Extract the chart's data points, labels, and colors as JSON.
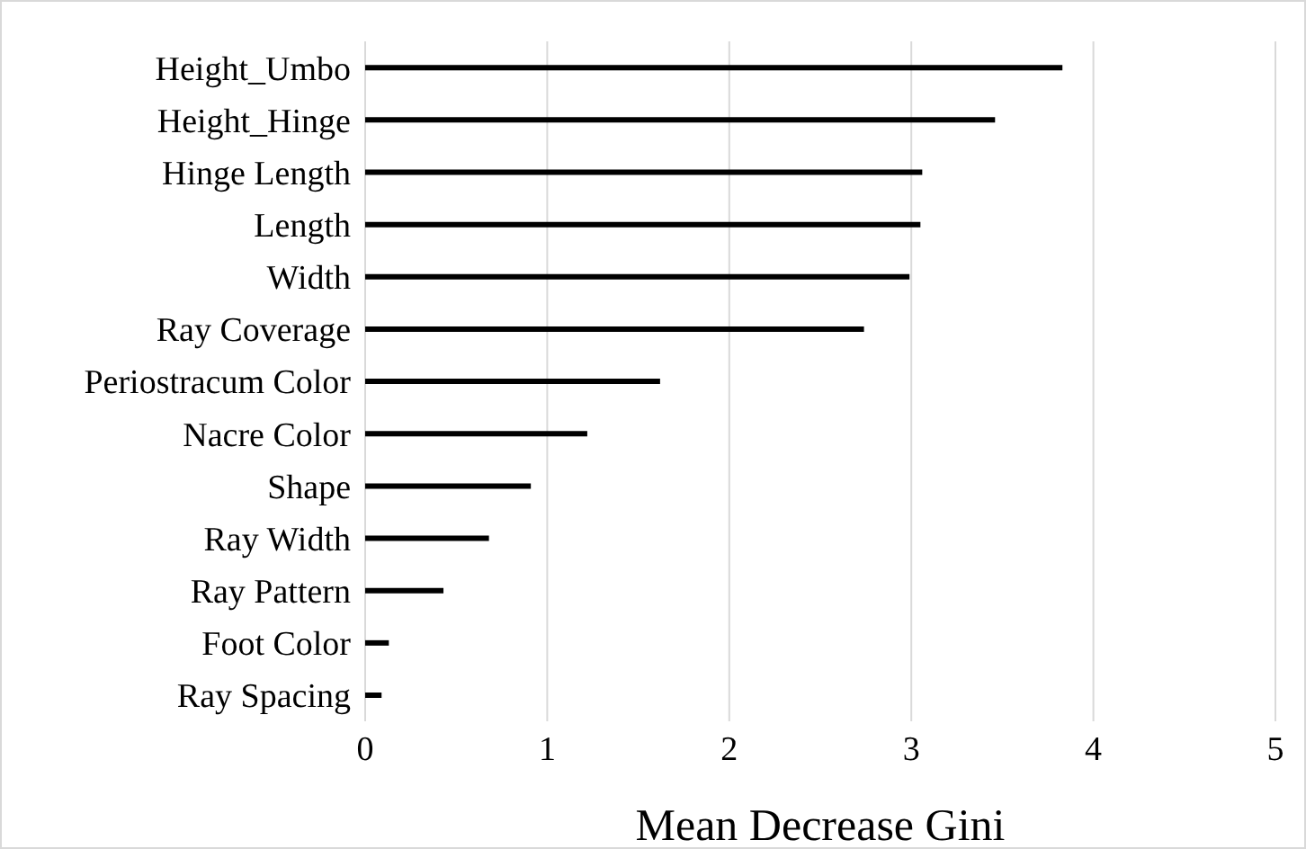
{
  "chart_data": {
    "type": "bar",
    "orientation": "horizontal",
    "xlabel": "Mean Decrease Gini",
    "categories": [
      "Height_Umbo",
      "Height_Hinge",
      "Hinge Length",
      "Length",
      "Width",
      "Ray Coverage",
      "Periostracum Color",
      "Nacre Color",
      "Shape",
      "Ray Width",
      "Ray Pattern",
      "Foot Color",
      "Ray Spacing"
    ],
    "values": [
      3.83,
      3.46,
      3.06,
      3.05,
      2.99,
      2.74,
      1.62,
      1.22,
      0.91,
      0.68,
      0.43,
      0.13,
      0.09
    ],
    "color": "#000000",
    "xlim": [
      0,
      5
    ],
    "xticks": [
      0,
      1,
      2,
      3,
      4,
      5
    ],
    "grid": "x",
    "legend": false
  }
}
